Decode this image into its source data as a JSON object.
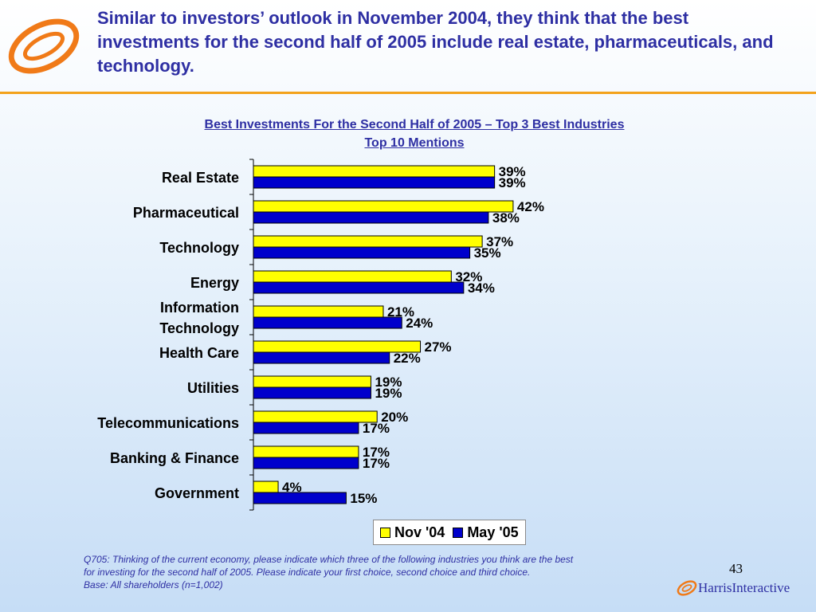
{
  "header": {
    "headline": "Similar to investors’ outlook in November 2004, they think that the best investments for the second half of 2005 include real estate, pharmaceuticals, and technology.",
    "accent_color": "#f3a21c",
    "headline_color": "#2e2fa3"
  },
  "chart_data": {
    "type": "bar",
    "orientation": "horizontal",
    "title": "Best Investments For the Second Half of 2005 – Top 3 Best Industries",
    "subtitle": "Top 10 Mentions",
    "categories": [
      [
        "Real Estate"
      ],
      [
        "Pharmaceutical"
      ],
      [
        "Technology"
      ],
      [
        "Energy"
      ],
      [
        "Information",
        "Technology"
      ],
      [
        "Health Care"
      ],
      [
        "Utilities"
      ],
      [
        "Telecommunications"
      ],
      [
        "Banking & Finance"
      ],
      [
        "Government"
      ]
    ],
    "series": [
      {
        "name": "Nov '04",
        "color": "#ffff00",
        "values": [
          39,
          42,
          37,
          32,
          21,
          27,
          19,
          20,
          17,
          4
        ]
      },
      {
        "name": "May '05",
        "color": "#0000cc",
        "values": [
          39,
          38,
          35,
          34,
          24,
          22,
          19,
          17,
          17,
          15
        ]
      }
    ],
    "value_suffix": "%",
    "xlim": [
      0,
      50
    ],
    "grid": false,
    "legend_position": "bottom-center"
  },
  "footnote": {
    "lines": [
      "Q705: Thinking of the current economy, please indicate which three of the following industries you think are the best",
      "for investing for the second half of 2005.  Please indicate your first choice, second choice and third choice.",
      "Base:  All shareholders (n=1,002)"
    ]
  },
  "page_number": "43",
  "brand": {
    "name": "Harris",
    "suffix": "Interactive"
  }
}
